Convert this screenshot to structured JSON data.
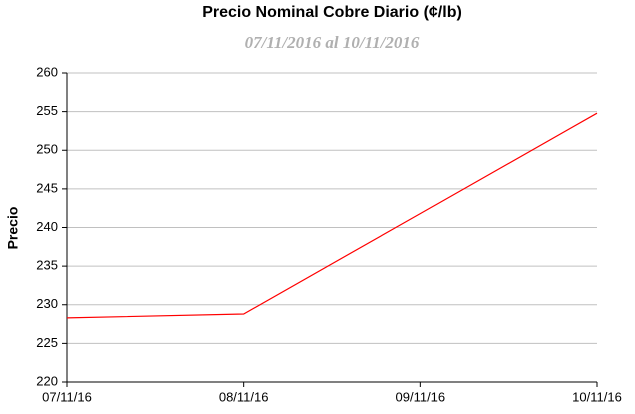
{
  "chart_data": {
    "type": "line",
    "title": "Precio Nominal Cobre Diario (¢/lb)",
    "subtitle": "07/11/2016 al 10/11/2016",
    "y_label": "Precio",
    "categories": [
      "07/11/16",
      "08/11/16",
      "09/11/16",
      "10/11/16"
    ],
    "values": [
      228.3,
      228.8,
      241.8,
      254.8
    ],
    "color": "#ff0000",
    "ylim": [
      220,
      260
    ],
    "yticks": [
      220,
      225,
      230,
      235,
      240,
      245,
      250,
      255,
      260
    ],
    "grid": true
  }
}
